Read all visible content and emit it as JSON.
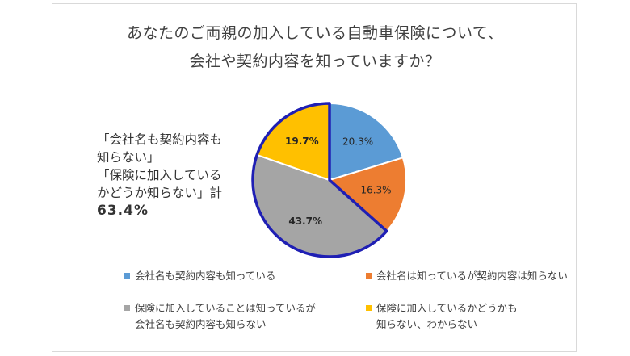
{
  "title_lines": [
    "あなたのご両親の加入している自動車保険について、",
    "会社や契約内容を知っていますか？"
  ],
  "callout": {
    "lines": [
      "「会社名も契約内容も",
      "知らない」",
      "「保険に加入している",
      "かどうか知らない」計"
    ],
    "total": "63.4%"
  },
  "colors": {
    "blue": "#5b9bd5",
    "orange": "#ed7d31",
    "gray": "#a5a5a5",
    "yellow": "#ffc000",
    "highlight_border": "#1f1fb4"
  },
  "chart_data": {
    "type": "pie",
    "slices": [
      {
        "label": "会社名も契約内容も知っている",
        "value": 20.3,
        "display": "20.3%",
        "color": "#5b9bd5",
        "highlighted": false,
        "bold": false
      },
      {
        "label": "会社名は知っているが契約内容は知らない",
        "value": 16.3,
        "display": "16.3%",
        "color": "#ed7d31",
        "highlighted": false,
        "bold": false
      },
      {
        "label": "保険に加入していることは知っているが会社名も契約内容も知らない",
        "value": 43.7,
        "display": "43.7%",
        "color": "#a5a5a5",
        "highlighted": true,
        "bold": true
      },
      {
        "label": "保険に加入しているかどうかも知らない、わからない",
        "value": 19.7,
        "display": "19.7%",
        "color": "#ffc000",
        "highlighted": true,
        "bold": true
      }
    ],
    "start_angle": "12 o'clock",
    "direction": "clockwise"
  },
  "legend": [
    {
      "lines": [
        "会社名も契約内容も知っている"
      ],
      "color": "#5b9bd5"
    },
    {
      "lines": [
        "会社名は知っているが契約内容は知らない"
      ],
      "color": "#ed7d31"
    },
    {
      "lines": [
        "保険に加入していることは知っているが",
        "会社名も契約内容も知らない"
      ],
      "color": "#a5a5a5"
    },
    {
      "lines": [
        "保険に加入しているかどうかも",
        "知らない、わからない"
      ],
      "color": "#ffc000"
    }
  ]
}
